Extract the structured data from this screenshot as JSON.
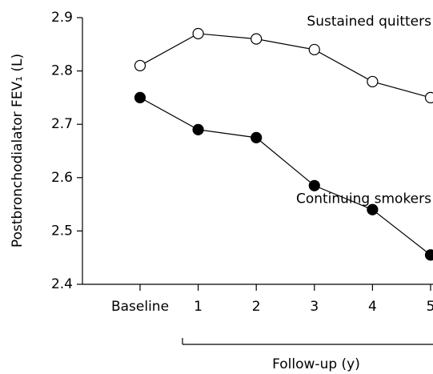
{
  "chart_data": {
    "type": "line",
    "y_label": "Postbronchodialator FEV₁ (L)",
    "x_group_label": "Follow-up (y)",
    "categories": [
      "Baseline",
      "1",
      "2",
      "3",
      "4",
      "5"
    ],
    "series": [
      {
        "name": "Sustained quitters",
        "color": "#000000",
        "marker_face": "#ffffff",
        "values": [
          2.81,
          2.87,
          2.86,
          2.84,
          2.78,
          2.75
        ]
      },
      {
        "name": "Continuing smokers",
        "color": "#000000",
        "marker_face": "#000000",
        "values": [
          2.75,
          2.69,
          2.675,
          2.585,
          2.54,
          2.455
        ]
      }
    ],
    "ylim": [
      2.4,
      2.9
    ],
    "yticks": [
      2.4,
      2.5,
      2.6,
      2.7,
      2.8,
      2.9
    ],
    "grid": false
  }
}
